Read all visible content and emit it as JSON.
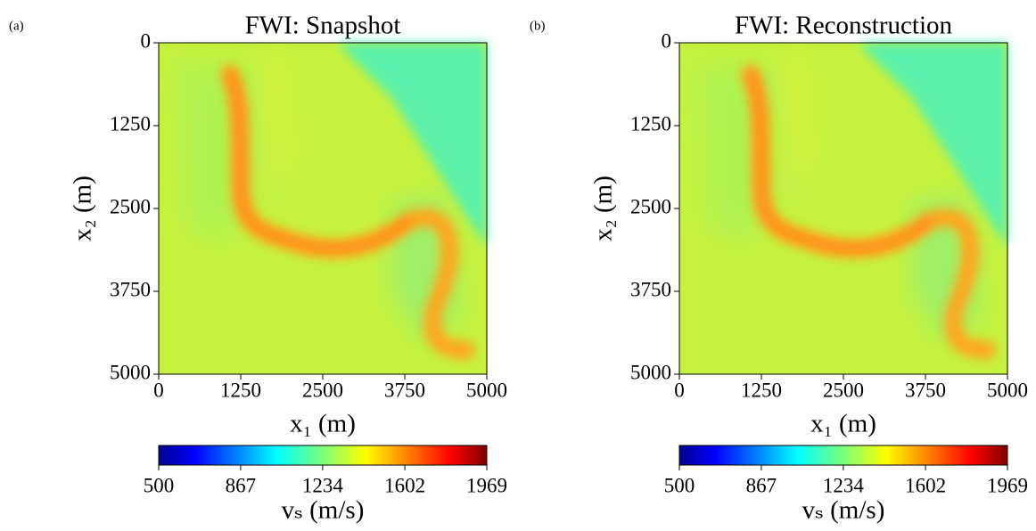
{
  "chart_data": [
    {
      "type": "image",
      "panel": "(a)",
      "title": "FWI: Snapshot",
      "xlabel": "x₁ (m)",
      "ylabel": "x₂ (m)",
      "xlim": [
        0,
        5000
      ],
      "xticks": [
        0,
        1250,
        2500,
        3750,
        5000
      ],
      "ylim": [
        0,
        5000
      ],
      "yticks": [
        0,
        1250,
        2500,
        3750,
        5000
      ],
      "y_inverted": true,
      "colorbar": {
        "label": "vₛ (m/s)",
        "lim": [
          500,
          1969
        ],
        "ticks": [
          500,
          867,
          1234,
          1602,
          1969
        ],
        "colormap": "jet"
      }
    },
    {
      "type": "image",
      "panel": "(b)",
      "title": "FWI: Reconstruction",
      "xlabel": "x₁ (m)",
      "ylabel": "x₂ (m)",
      "xlim": [
        0,
        5000
      ],
      "xticks": [
        0,
        1250,
        2500,
        3750,
        5000
      ],
      "ylim": [
        0,
        5000
      ],
      "yticks": [
        0,
        1250,
        2500,
        3750,
        5000
      ],
      "y_inverted": true,
      "colorbar": {
        "label": "vₛ (m/s)",
        "lim": [
          500,
          1969
        ],
        "ticks": [
          500,
          867,
          1234,
          1602,
          1969
        ],
        "colormap": "jet"
      }
    }
  ]
}
